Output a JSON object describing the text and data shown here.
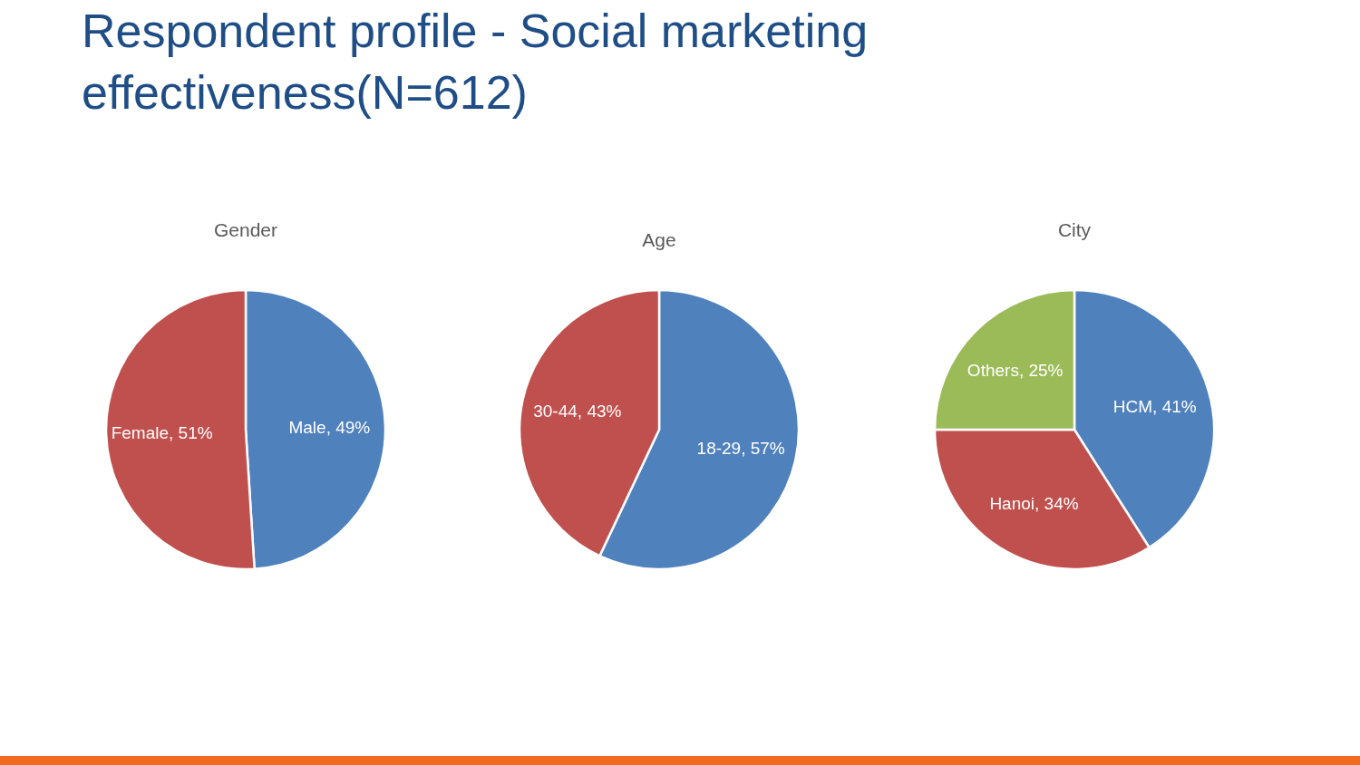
{
  "chart_data": [
    {
      "type": "pie",
      "title": "Respondent profile - Social marketing effectiveness(N=612)",
      "subtitle": "Gender",
      "categories": [
        "Male",
        "Female"
      ],
      "values": [
        49,
        51
      ],
      "colors": [
        "#4f81bd",
        "#c0504d"
      ],
      "value_labels": [
        "49%",
        "51%"
      ]
    },
    {
      "type": "pie",
      "subtitle": "Age",
      "categories": [
        "18-29",
        "30-44"
      ],
      "values": [
        57,
        43
      ],
      "colors": [
        "#4f81bd",
        "#c0504d"
      ],
      "value_labels": [
        "57%",
        "43%"
      ]
    },
    {
      "type": "pie",
      "subtitle": "City",
      "categories": [
        "HCM",
        "Hanoi",
        "Others"
      ],
      "values": [
        41,
        34,
        25
      ],
      "colors": [
        "#4f81bd",
        "#c0504d",
        "#9bbb59"
      ],
      "value_labels": [
        "41%",
        "34%",
        "25%"
      ]
    }
  ]
}
